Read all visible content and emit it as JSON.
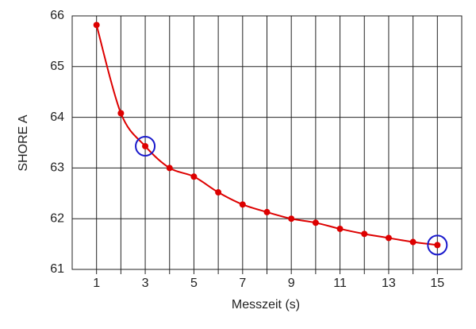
{
  "chart_data": {
    "type": "line",
    "xlabel": "Messzeit (s)",
    "ylabel": "SHORE A",
    "x": [
      1,
      2,
      3,
      4,
      5,
      6,
      7,
      8,
      9,
      10,
      11,
      12,
      13,
      14,
      15
    ],
    "series": [
      {
        "name": "SHORE A",
        "color": "#dd0000",
        "values": [
          65.82,
          64.08,
          63.43,
          63.0,
          62.83,
          62.52,
          62.28,
          62.13,
          62.0,
          61.92,
          61.8,
          61.7,
          61.62,
          61.54,
          61.48
        ]
      }
    ],
    "xlim": [
      0,
      16
    ],
    "xticks": [
      1,
      3,
      5,
      7,
      9,
      11,
      13,
      15
    ],
    "xminorticks": [
      2,
      4,
      6,
      8,
      10,
      12,
      14
    ],
    "ylim": [
      61,
      66
    ],
    "yticks": [
      61,
      62,
      63,
      64,
      65,
      66
    ],
    "grid": true,
    "smooth": true,
    "highlight_indices": [
      2,
      14
    ],
    "highlight_color": "#1a1acc"
  }
}
